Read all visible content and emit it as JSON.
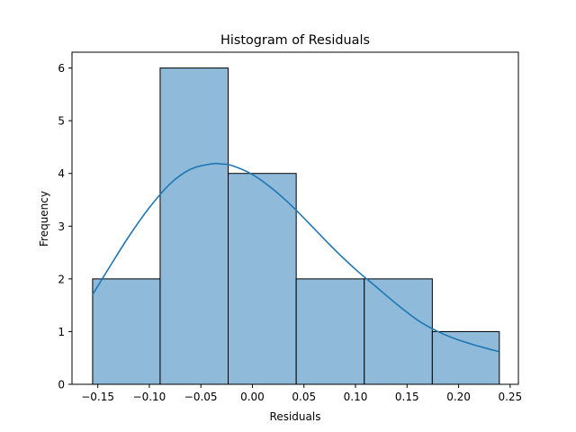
{
  "chart_data": {
    "type": "histogram",
    "title": "Histogram of Residuals",
    "xlabel": "Residuals",
    "ylabel": "Frequency",
    "xlim": [
      -0.175,
      0.258
    ],
    "ylim": [
      0,
      6.3
    ],
    "xticks": [
      -0.15,
      -0.1,
      -0.05,
      0.0,
      0.05,
      0.1,
      0.15,
      0.2,
      0.25
    ],
    "xtick_labels": [
      "−0.15",
      "−0.10",
      "−0.05",
      "0.00",
      "0.05",
      "0.10",
      "0.15",
      "0.20",
      "0.25"
    ],
    "yticks": [
      0,
      1,
      2,
      3,
      4,
      5,
      6
    ],
    "ytick_labels": [
      "0",
      "1",
      "2",
      "3",
      "4",
      "5",
      "6"
    ],
    "bins": [
      {
        "start": -0.155,
        "end": -0.0895,
        "count": 2
      },
      {
        "start": -0.0895,
        "end": -0.0235,
        "count": 6
      },
      {
        "start": -0.0235,
        "end": 0.0425,
        "count": 4
      },
      {
        "start": 0.0425,
        "end": 0.1085,
        "count": 2
      },
      {
        "start": 0.1085,
        "end": 0.1745,
        "count": 2
      },
      {
        "start": 0.1745,
        "end": 0.2395,
        "count": 1
      }
    ],
    "kde": {
      "x": [
        -0.155,
        -0.14,
        -0.12,
        -0.1,
        -0.08,
        -0.06,
        -0.04,
        -0.03,
        -0.02,
        0.0,
        0.02,
        0.04,
        0.06,
        0.08,
        0.1,
        0.12,
        0.14,
        0.16,
        0.18,
        0.2,
        0.22,
        0.239
      ],
      "y": [
        1.7,
        2.18,
        2.8,
        3.35,
        3.8,
        4.08,
        4.18,
        4.18,
        4.15,
        3.98,
        3.7,
        3.35,
        2.95,
        2.55,
        2.18,
        1.85,
        1.52,
        1.22,
        1.0,
        0.84,
        0.72,
        0.62
      ]
    },
    "colors": {
      "bar_fill": "#8fbad9",
      "bar_edge": "#000000",
      "kde_line": "#1f77b4"
    }
  }
}
